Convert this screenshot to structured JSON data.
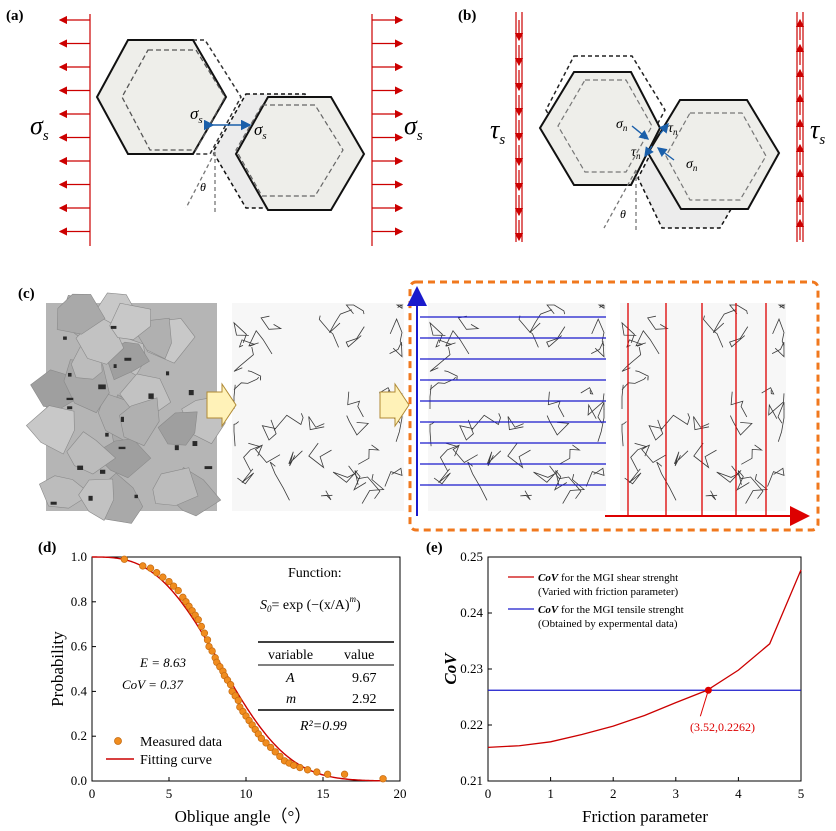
{
  "panels": {
    "a": {
      "label": "(a)",
      "sigma_left": "σ",
      "sub_left": "s",
      "sigma_right": "σ",
      "sub_right": "s",
      "inner_left": "σ",
      "inner_left_sub": "s",
      "inner_right": "σ",
      "inner_right_sub": "s",
      "theta": "θ"
    },
    "b": {
      "label": "(b)",
      "tau_left": "τ",
      "sub_left": "s",
      "tau_right": "τ",
      "sub_right": "s",
      "sigma_n1": "σ",
      "sigma_n1_sub": "n",
      "tau_n1": "τ",
      "tau_n1_sub": "n",
      "tau_n2": "τ",
      "tau_n2_sub": "n",
      "sigma_n2": "σ",
      "sigma_n2_sub": "n",
      "theta": "θ"
    },
    "c": {
      "label": "(c)"
    },
    "d": {
      "label": "(d)"
    },
    "e": {
      "label": "(e)"
    }
  },
  "colors": {
    "red": "#cc0000",
    "blue": "#1a1acc",
    "orange": "#f0781e",
    "marker": "#f08c1e",
    "hex_fill": "#ececec"
  },
  "chart_data": [
    {
      "id": "d",
      "type": "scatter",
      "xlabel": "Oblique angle（°）",
      "ylabel": "Probability",
      "xlim": [
        0,
        20
      ],
      "ylim": [
        0,
        1.0
      ],
      "xticks": [
        "0",
        "5",
        "10",
        "15",
        "20"
      ],
      "yticks": [
        "0.0",
        "0.2",
        "0.4",
        "0.6",
        "0.8",
        "1.0"
      ],
      "legend": {
        "placement": "bottom-left",
        "entries": [
          "Measured data",
          "Fitting curve"
        ]
      },
      "annotations": {
        "E": "E = 8.63",
        "CoV": "CoV = 0.37",
        "function_title": "Function:",
        "function_lhs": "S",
        "function_lhs_sub": "0",
        "function_rhs": "= exp",
        "table_head": [
          "variable",
          "value"
        ],
        "table_rows": [
          [
            "A",
            "9.67"
          ],
          [
            "m",
            "2.92"
          ]
        ],
        "r2": "R²=0.99"
      },
      "fit": {
        "A": 9.67,
        "m": 2.92
      },
      "series": [
        {
          "name": "Measured data",
          "kind": "markers",
          "x": [
            2.1,
            3.3,
            3.8,
            4.2,
            4.6,
            5.0,
            5.3,
            5.6,
            5.9,
            6.1,
            6.3,
            6.5,
            6.7,
            6.9,
            7.1,
            7.3,
            7.5,
            7.6,
            7.8,
            8.0,
            8.1,
            8.3,
            8.5,
            8.6,
            8.8,
            9.0,
            9.1,
            9.3,
            9.5,
            9.6,
            9.8,
            10.0,
            10.2,
            10.4,
            10.6,
            10.8,
            11.0,
            11.3,
            11.6,
            11.9,
            12.2,
            12.5,
            12.8,
            13.1,
            13.5,
            14.0,
            14.6,
            15.3,
            16.4,
            18.9
          ],
          "y": [
            0.99,
            0.96,
            0.95,
            0.93,
            0.91,
            0.89,
            0.87,
            0.85,
            0.82,
            0.8,
            0.78,
            0.76,
            0.74,
            0.72,
            0.69,
            0.66,
            0.63,
            0.6,
            0.58,
            0.55,
            0.53,
            0.51,
            0.49,
            0.47,
            0.45,
            0.43,
            0.4,
            0.38,
            0.36,
            0.33,
            0.31,
            0.29,
            0.27,
            0.25,
            0.23,
            0.21,
            0.19,
            0.17,
            0.15,
            0.13,
            0.11,
            0.09,
            0.08,
            0.07,
            0.06,
            0.05,
            0.04,
            0.03,
            0.03,
            0.01
          ]
        },
        {
          "name": "Fitting curve",
          "kind": "line"
        }
      ]
    },
    {
      "id": "e",
      "type": "line",
      "xlabel": "Friction parameter",
      "ylabel": "CoV",
      "xlim": [
        0,
        5
      ],
      "ylim": [
        0.21,
        0.25
      ],
      "xticks": [
        "0",
        "1",
        "2",
        "3",
        "4",
        "5"
      ],
      "yticks": [
        "0.21",
        "0.22",
        "0.23",
        "0.24",
        "0.25"
      ],
      "legend": {
        "placement": "top-right",
        "entries": [
          {
            "bold": "CoV",
            "text": " for the MGI shear strenght",
            "text2": "(Varied with friction parameter)"
          },
          {
            "bold": "CoV",
            "text": " for the MGI tensile strenght",
            "text2": "(Obtained by expermental data)"
          }
        ]
      },
      "annotation": {
        "label": "(3.52,0.2262)",
        "x": 3.52,
        "y": 0.2262
      },
      "series": [
        {
          "name": "CoV for the MGI shear strenght",
          "x": [
            0,
            0.5,
            1.0,
            1.5,
            2.0,
            2.5,
            3.0,
            3.5,
            4.0,
            4.5,
            5.0
          ],
          "y": [
            0.216,
            0.2163,
            0.217,
            0.2183,
            0.2198,
            0.2217,
            0.224,
            0.2262,
            0.2298,
            0.2345,
            0.2477
          ]
        },
        {
          "name": "CoV for the MGI tensile strenght",
          "x": [
            0,
            5
          ],
          "y": [
            0.2262,
            0.2262
          ]
        }
      ]
    }
  ]
}
